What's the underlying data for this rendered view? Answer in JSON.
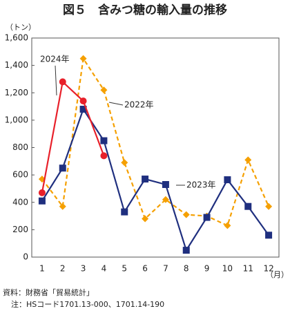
{
  "chart_data": {
    "type": "line",
    "title": "図５　含みつ糖の輸入量の推移",
    "y_unit": "（トン）",
    "x_unit": "（月）",
    "categories": [
      "1",
      "2",
      "3",
      "4",
      "5",
      "6",
      "7",
      "8",
      "9",
      "10",
      "11",
      "12"
    ],
    "series": [
      {
        "name": "2022年",
        "color": "#f5a000",
        "line_style": "dashed",
        "marker": "diamond",
        "values": [
          570,
          370,
          1450,
          1220,
          690,
          280,
          420,
          310,
          300,
          230,
          710,
          370
        ]
      },
      {
        "name": "2023年",
        "color": "#1f2f7f",
        "line_style": "solid",
        "marker": "square",
        "values": [
          410,
          650,
          1080,
          850,
          330,
          570,
          530,
          50,
          290,
          565,
          370,
          160
        ]
      },
      {
        "name": "2024年",
        "color": "#e8202a",
        "line_style": "solid",
        "marker": "circle",
        "values": [
          470,
          1280,
          1140,
          740,
          null,
          null,
          null,
          null,
          null,
          null,
          null,
          null
        ]
      }
    ],
    "ylim": [
      0,
      1600
    ],
    "yticks": [
      0,
      200,
      400,
      600,
      800,
      {
        "value": 1000,
        "label": "1,000"
      },
      {
        "value": 1200,
        "label": "1,200"
      },
      {
        "value": 1400,
        "label": "1,400"
      },
      {
        "value": 1600,
        "label": "1,600"
      }
    ],
    "source": "資料：財務省「貿易統計」",
    "note": "注：HSコード1701.13-000、1701.14-190"
  }
}
